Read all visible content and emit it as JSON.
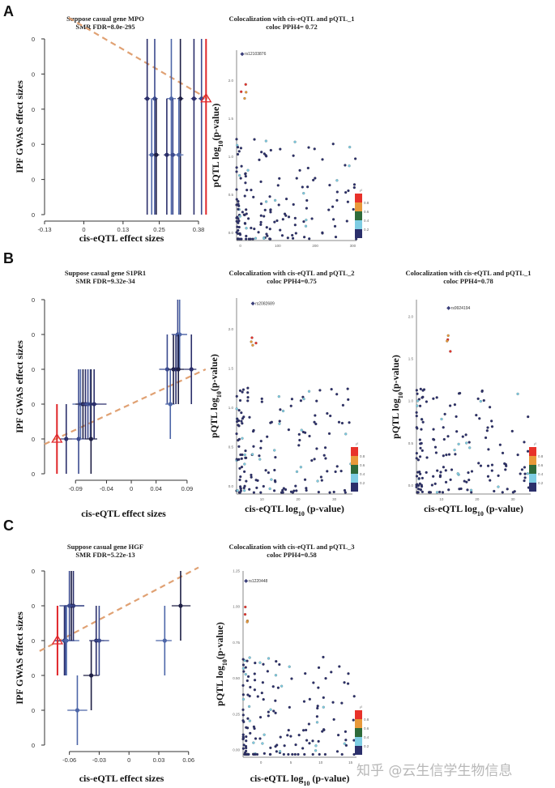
{
  "panel_letters": [
    "A",
    "B",
    "C"
  ],
  "watermark": "知乎 @云生信学生物信息",
  "legend": {
    "title": "r²",
    "colors": [
      "#2b2f6b",
      "#7ecde3",
      "#2e6b3a",
      "#e8993a",
      "#e8322a"
    ],
    "labels": [
      "0.2",
      "0.4",
      "0.6",
      "0.8"
    ]
  },
  "chart_data": [
    {
      "id": "A-smr",
      "type": "scatter",
      "title": "Suppose casual gene MPO",
      "subtitle": "SMR FDR=8.0e-295",
      "xlabel": "cis-eQTL effect sizes",
      "ylabel": "IPF GWAS effect sizes",
      "xticks": [
        "-0.13",
        "0",
        "0.13",
        "0.25",
        "0.38"
      ],
      "xlim": [
        -0.13,
        0.38
      ],
      "yticks": [
        "0",
        "0",
        "0",
        "0",
        "0",
        "0"
      ],
      "ylim": [
        0,
        5
      ],
      "trend": {
        "x0": -0.05,
        "y0": 5.6,
        "x1": 0.41,
        "y1": 3.3
      },
      "points": [
        {
          "x": 0.21,
          "y": 3.3,
          "ylo": 0,
          "yhi": 5,
          "xlo": 0.2,
          "xhi": 0.22
        },
        {
          "x": 0.235,
          "y": 3.3,
          "ylo": 0,
          "yhi": 5,
          "xlo": 0.225,
          "xhi": 0.245
        },
        {
          "x": 0.29,
          "y": 3.3,
          "ylo": 0,
          "yhi": 5,
          "xlo": 0.275,
          "xhi": 0.305
        },
        {
          "x": 0.32,
          "y": 3.3,
          "ylo": 0,
          "yhi": 5,
          "xlo": 0.31,
          "xhi": 0.33
        },
        {
          "x": 0.365,
          "y": 3.3,
          "ylo": 0,
          "yhi": 5,
          "xlo": 0.355,
          "xhi": 0.375
        },
        {
          "x": 0.39,
          "y": 3.3,
          "ylo": 0,
          "yhi": 5,
          "xlo": 0.38,
          "xhi": 0.4
        },
        {
          "x": 0.225,
          "y": 1.7,
          "ylo": 0,
          "yhi": 3.3,
          "xlo": 0.215,
          "xhi": 0.24
        },
        {
          "x": 0.24,
          "y": 1.7,
          "ylo": 0,
          "yhi": 3.3,
          "xlo": 0.23,
          "xhi": 0.25
        },
        {
          "x": 0.275,
          "y": 1.7,
          "ylo": 0,
          "yhi": 3.3,
          "xlo": 0.265,
          "xhi": 0.285
        },
        {
          "x": 0.295,
          "y": 1.7,
          "ylo": 0,
          "yhi": 3.3,
          "xlo": 0.285,
          "xhi": 0.305
        },
        {
          "x": 0.315,
          "y": 1.7,
          "ylo": 0,
          "yhi": 3.3,
          "xlo": 0.305,
          "xhi": 0.33
        }
      ],
      "lead": {
        "x": 0.405,
        "y": 3.3,
        "ylo": 0,
        "yhi": 5
      }
    },
    {
      "id": "A-coloc",
      "type": "scatter",
      "title": "Colocalization with cis-eQTL and pQTL_1",
      "subtitle": "coloc PPH4= 0.72",
      "xlabel": "",
      "ylabel": "pQTL log10(p-value)",
      "xticks": [
        "0",
        "100",
        "200",
        "300"
      ],
      "xlim": [
        -10,
        310
      ],
      "yticks": [
        "0.0",
        "0.5",
        "1.0",
        "1.5",
        "2.0"
      ],
      "ylim": [
        -0.1,
        2.4
      ],
      "lead_snp": {
        "label": "rs12103876",
        "x": 5,
        "y": 2.35
      }
    },
    {
      "id": "B-smr",
      "type": "scatter",
      "title": "Suppose casual gene S1PR1",
      "subtitle": "SMR FDR=9.32e-34",
      "xlabel": "cis-eQTL effect sizes",
      "ylabel": "IPF GWAS effect sizes",
      "xticks": [
        "-0.09",
        "-0.04",
        "0",
        "0.04",
        "0.09"
      ],
      "xlim": [
        -0.14,
        0.115
      ],
      "yticks": [
        "0",
        "0",
        "0",
        "0",
        "0",
        "0"
      ],
      "ylim": [
        0,
        5
      ],
      "trend": {
        "x0": -0.14,
        "y0": 0.85,
        "x1": 0.12,
        "y1": 3.0
      },
      "points": [
        {
          "x": -0.105,
          "y": 1,
          "ylo": 0,
          "yhi": 2,
          "xlo": -0.115,
          "xhi": -0.095
        },
        {
          "x": -0.085,
          "y": 1,
          "ylo": 0,
          "yhi": 3,
          "xlo": -0.095,
          "xhi": -0.075
        },
        {
          "x": -0.082,
          "y": 2,
          "ylo": 1,
          "yhi": 3,
          "xlo": -0.095,
          "xhi": -0.07
        },
        {
          "x": -0.078,
          "y": 2,
          "ylo": 1,
          "yhi": 3,
          "xlo": -0.09,
          "xhi": -0.065
        },
        {
          "x": -0.074,
          "y": 2,
          "ylo": 1,
          "yhi": 3,
          "xlo": -0.085,
          "xhi": -0.06
        },
        {
          "x": -0.07,
          "y": 2,
          "ylo": 1,
          "yhi": 3,
          "xlo": -0.08,
          "xhi": -0.055
        },
        {
          "x": -0.066,
          "y": 2,
          "ylo": 1,
          "yhi": 3,
          "xlo": -0.075,
          "xhi": -0.055
        },
        {
          "x": -0.065,
          "y": 1,
          "ylo": 0,
          "yhi": 3,
          "xlo": -0.075,
          "xhi": -0.055
        },
        {
          "x": -0.06,
          "y": 2,
          "ylo": 1,
          "yhi": 3,
          "xlo": -0.07,
          "xhi": -0.04
        },
        {
          "x": 0.058,
          "y": 3,
          "ylo": 2,
          "yhi": 4,
          "xlo": 0.045,
          "xhi": 0.07
        },
        {
          "x": 0.063,
          "y": 2,
          "ylo": 1,
          "yhi": 3,
          "xlo": 0.055,
          "xhi": 0.07
        },
        {
          "x": 0.068,
          "y": 3,
          "ylo": 2,
          "yhi": 4,
          "xlo": 0.06,
          "xhi": 0.08
        },
        {
          "x": 0.072,
          "y": 3,
          "ylo": 2,
          "yhi": 4,
          "xlo": 0.065,
          "xhi": 0.085
        },
        {
          "x": 0.075,
          "y": 4,
          "ylo": 3,
          "yhi": 5,
          "xlo": 0.065,
          "xhi": 0.09
        },
        {
          "x": 0.078,
          "y": 4,
          "ylo": 3,
          "yhi": 5,
          "xlo": 0.07,
          "xhi": 0.09
        },
        {
          "x": 0.076,
          "y": 3,
          "ylo": 2,
          "yhi": 4,
          "xlo": 0.068,
          "xhi": 0.085
        },
        {
          "x": 0.097,
          "y": 3,
          "ylo": 2,
          "yhi": 4,
          "xlo": 0.085,
          "xhi": 0.105
        }
      ],
      "lead": {
        "x": -0.12,
        "y": 1,
        "ylo": 0,
        "yhi": 2
      }
    },
    {
      "id": "B-coloc2",
      "type": "scatter",
      "title": "Colocalization with cis-eQTL and pQTL_2",
      "subtitle": "coloc PPH4=0.75",
      "xlabel": "cis-eQTL log10 (p-value)",
      "ylabel": "pQTL log10(p-value)",
      "xticks": [
        "10",
        "20",
        "30"
      ],
      "xlim": [
        3,
        35
      ],
      "yticks": [
        "0.0",
        "0.5",
        "1.0",
        "1.5",
        "2.0"
      ],
      "ylim": [
        -0.1,
        2.4
      ],
      "lead_snp": {
        "label": "rs2082689",
        "x": 7.5,
        "y": 2.33
      }
    },
    {
      "id": "B-coloc1",
      "type": "scatter",
      "title": "Colocalization with cis-eQTL and pQTL_1",
      "subtitle": "coloc PPH4=0.78",
      "xlabel": "cis-eQTL log10 (p-value)",
      "ylabel": "pQTL log10(p-value)",
      "xticks": [
        "10",
        "20",
        "30"
      ],
      "xlim": [
        3,
        35
      ],
      "yticks": [
        "0.0",
        "0.5",
        "1.0",
        "1.5",
        "2.0"
      ],
      "ylim": [
        -0.1,
        2.2
      ],
      "lead_snp": {
        "label": "rs9924194",
        "x": 12,
        "y": 2.1
      }
    },
    {
      "id": "C-smr",
      "type": "scatter",
      "title": "Suppose casual gene HGF",
      "subtitle": "SMR FDR=5.22e-13",
      "xlabel": "cis-eQTL effect sizes",
      "ylabel": "IPF GWAS effect sizes",
      "xticks": [
        "-0.06",
        "-0.03",
        "0",
        "0.03",
        "0.06"
      ],
      "xlim": [
        -0.085,
        0.07
      ],
      "yticks": [
        "0",
        "0",
        "0",
        "0",
        "0",
        "0"
      ],
      "ylim": [
        0,
        5
      ],
      "trend": {
        "x0": -0.09,
        "y0": 2.7,
        "x1": 0.07,
        "y1": 5.1
      },
      "points": [
        {
          "x": -0.065,
          "y": 3,
          "ylo": 2,
          "yhi": 4,
          "xlo": -0.075,
          "xhi": -0.055
        },
        {
          "x": -0.064,
          "y": 3,
          "ylo": 2,
          "yhi": 4,
          "xlo": -0.075,
          "xhi": -0.055
        },
        {
          "x": -0.063,
          "y": 3,
          "ylo": 2,
          "yhi": 4,
          "xlo": -0.075,
          "xhi": -0.05
        },
        {
          "x": -0.058,
          "y": 4,
          "ylo": 3,
          "yhi": 5,
          "xlo": -0.065,
          "xhi": -0.045
        },
        {
          "x": -0.056,
          "y": 4,
          "ylo": 3,
          "yhi": 5,
          "xlo": -0.065,
          "xhi": -0.045
        },
        {
          "x": -0.06,
          "y": 4,
          "ylo": 3,
          "yhi": 5,
          "xlo": -0.07,
          "xhi": -0.045
        },
        {
          "x": -0.052,
          "y": 1,
          "ylo": 0,
          "yhi": 2,
          "xlo": -0.062,
          "xhi": -0.042
        },
        {
          "x": -0.038,
          "y": 2,
          "ylo": 1,
          "yhi": 3,
          "xlo": -0.046,
          "xhi": -0.03
        },
        {
          "x": -0.033,
          "y": 3,
          "ylo": 2,
          "yhi": 4,
          "xlo": -0.04,
          "xhi": -0.025
        },
        {
          "x": -0.03,
          "y": 3,
          "ylo": 2,
          "yhi": 4,
          "xlo": -0.035,
          "xhi": -0.02
        },
        {
          "x": 0.036,
          "y": 3,
          "ylo": 2,
          "yhi": 4,
          "xlo": 0.027,
          "xhi": 0.043
        },
        {
          "x": 0.052,
          "y": 4,
          "ylo": 3,
          "yhi": 5,
          "xlo": 0.043,
          "xhi": 0.062
        }
      ],
      "lead": {
        "x": -0.072,
        "y": 3,
        "ylo": 2,
        "yhi": 4
      }
    },
    {
      "id": "C-coloc3",
      "type": "scatter",
      "title": "Colocalization with cis-eQTL and pQTL_3",
      "subtitle": "coloc PPH4=0.58",
      "xlabel": "cis-eQTL log10 (p-value)",
      "ylabel": "pQTL log10(p-value)",
      "xticks": [
        "0",
        "5",
        "10",
        "15"
      ],
      "xlim": [
        -3,
        16
      ],
      "yticks": [
        "0.00",
        "0.25",
        "0.50",
        "0.75",
        "1.00",
        "1.25"
      ],
      "ylim": [
        -0.05,
        1.25
      ],
      "lead_snp": {
        "label": "rs1220448",
        "x": -2.5,
        "y": 1.18
      }
    }
  ]
}
